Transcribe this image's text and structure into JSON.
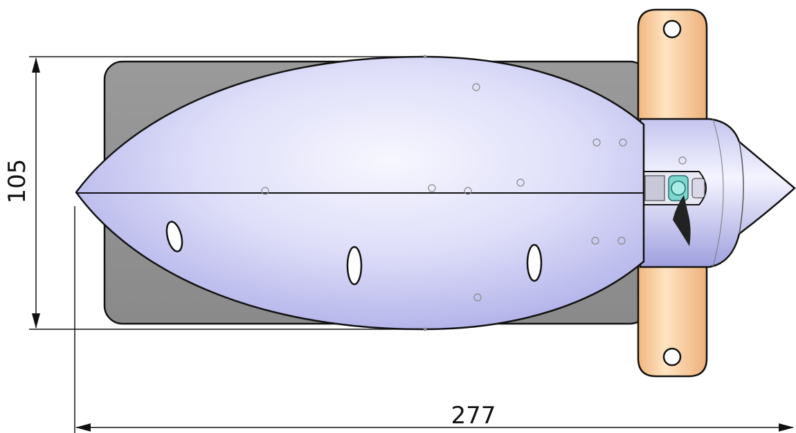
{
  "dimensions": {
    "height_label": "105",
    "length_label": "277"
  },
  "colors": {
    "base_plate": "#8f8f8f",
    "hull_light": "#f6f6ff",
    "hull_mid": "#d8d8f8",
    "hull_dark": "#a9a9e6",
    "clamp_light": "#ffe2ba",
    "clamp_dark": "#f0b279",
    "pod": "#c9c9f2",
    "lines": "#111111"
  }
}
